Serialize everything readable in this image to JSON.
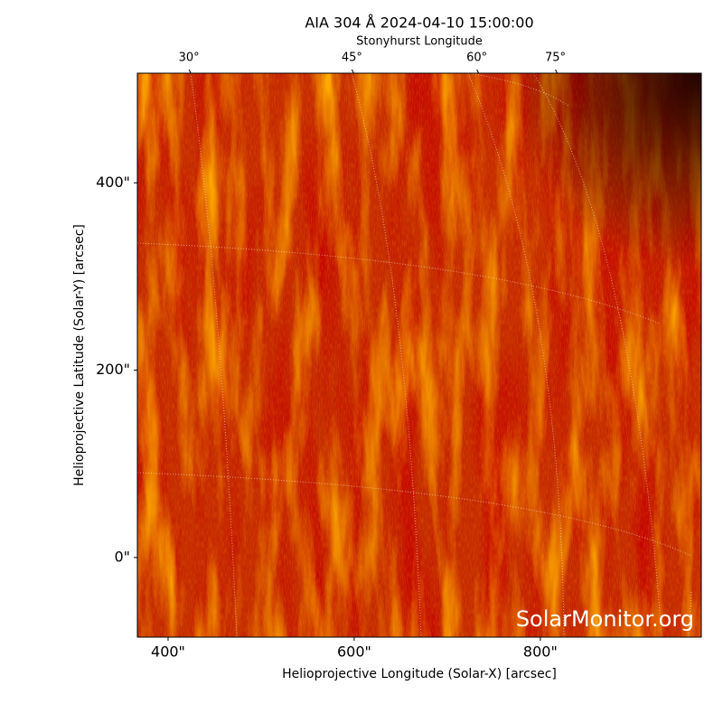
{
  "chart_data": {
    "type": "image",
    "title": "AIA 304 Å 2024-04-10 15:00:00",
    "top_axis_label": "Stonyhurst Longitude",
    "top_ticks": [
      {
        "value": 30,
        "label": "30°"
      },
      {
        "value": 45,
        "label": "45°"
      },
      {
        "value": 60,
        "label": "60°"
      },
      {
        "value": 75,
        "label": "75°"
      }
    ],
    "xlabel": "Helioprojective Longitude (Solar-X) [arcsec]",
    "ylabel": "Helioprojective Latitude (Solar-Y) [arcsec]",
    "xlim": [
      367,
      973
    ],
    "ylim": [
      -85,
      517
    ],
    "xticks": [
      {
        "value": 400,
        "label": "400\""
      },
      {
        "value": 600,
        "label": "600\""
      },
      {
        "value": 800,
        "label": "800\""
      }
    ],
    "yticks": [
      {
        "value": 0,
        "label": "0\""
      },
      {
        "value": 200,
        "label": "200\""
      },
      {
        "value": 400,
        "label": "400\""
      }
    ],
    "watermark": "SolarMonitor.org"
  }
}
